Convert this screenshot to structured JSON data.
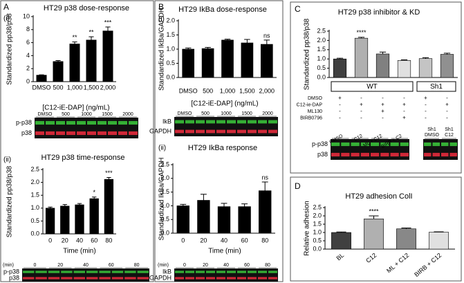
{
  "panels": [
    "A",
    "B",
    "C",
    "D"
  ],
  "subpanels": [
    "(i)",
    "(ii)",
    "(i)",
    "(ii)"
  ],
  "chart_data": [
    {
      "type": "bar",
      "title": "HT29 p38 dose-response",
      "y_label": "Standardized pp38/p38",
      "x_label": "[C12-iE-DAP] (ng/mL)",
      "categories": [
        "DMSO",
        "500",
        "1,000",
        "1,500",
        "2,000"
      ],
      "values": [
        1.0,
        3.1,
        5.8,
        6.4,
        7.8
      ],
      "errors": [
        0.05,
        0.15,
        0.3,
        0.5,
        0.6
      ],
      "bar_labels": [
        null,
        null,
        "**",
        "**",
        "***"
      ],
      "color": "#000000",
      "ylim": [
        0,
        10
      ],
      "yticks": [
        0,
        2,
        4,
        6,
        8,
        10
      ]
    },
    {
      "type": "bar",
      "title": "HT29 p38 time-response",
      "y_label": "Standardized pp38/p38",
      "x_label": "Time (min)",
      "categories": [
        "0",
        "20",
        "40",
        "60",
        "80"
      ],
      "values": [
        1.0,
        1.08,
        1.13,
        1.37,
        2.12
      ],
      "errors": [
        0.04,
        0.06,
        0.05,
        0.06,
        0.07
      ],
      "bar_labels": [
        null,
        null,
        null,
        "*",
        "***"
      ],
      "color": "#000000",
      "ylim": [
        0,
        2.5
      ],
      "yticks": [
        {
          "value": 0,
          "label": "0.0"
        },
        0.5,
        {
          "value": 1,
          "label": "1.0"
        },
        1.5,
        {
          "value": 2,
          "label": "2.0"
        },
        2.5
      ]
    },
    {
      "type": "bar",
      "title": "HT29 IkBa dose-response",
      "y_label": "Standardized IkBa/GAPDH",
      "x_label": "[C12-iE-DAP] (ng/mL)",
      "categories": [
        "DMSO",
        "500",
        "1,000",
        "1,500",
        "2,000"
      ],
      "values": [
        1.0,
        1.02,
        1.32,
        1.22,
        1.17
      ],
      "errors": [
        0.04,
        0.04,
        0.03,
        0.12,
        0.15
      ],
      "bar_labels": [
        null,
        null,
        null,
        null,
        "ns"
      ],
      "color": "#000000",
      "ylim": [
        0,
        2
      ],
      "yticks": [
        {
          "value": 0,
          "label": "0.0"
        },
        0.5,
        {
          "value": 1,
          "label": "1.0"
        },
        1.5,
        {
          "value": 2,
          "label": "2.0"
        }
      ]
    },
    {
      "type": "bar",
      "title": "HT29 IkBa response",
      "y_label": "Standardized IkBa/GAPDH",
      "x_label": "Time (min)",
      "categories": [
        "0",
        "20",
        "40",
        "60",
        "80"
      ],
      "values": [
        1.0,
        1.2,
        0.97,
        0.97,
        1.55
      ],
      "errors": [
        0.05,
        0.22,
        0.12,
        0.1,
        0.32
      ],
      "bar_labels": [
        null,
        null,
        null,
        null,
        "ns"
      ],
      "color": "#000000",
      "ylim": [
        0,
        2.5
      ],
      "yticks": [
        {
          "value": 0,
          "label": "0.0"
        },
        0.5,
        {
          "value": 1,
          "label": "1.0"
        },
        1.5,
        {
          "value": 2,
          "label": "2.0"
        },
        2.5
      ]
    },
    {
      "type": "bar",
      "title": "HT29 p38 inhibitor & KD",
      "y_label": "Standardized pp38/p38",
      "categories": [
        null,
        null,
        null,
        null,
        null,
        null
      ],
      "values": [
        1.0,
        2.12,
        1.27,
        0.92,
        1.02,
        1.25
      ],
      "errors": [
        0.04,
        0.05,
        0.1,
        0.03,
        0.05,
        0.06
      ],
      "bar_labels": [
        null,
        "****",
        null,
        null,
        null,
        null
      ],
      "colors": [
        "#404040",
        "#b0b0b0",
        "#808080",
        "#e0e0e0",
        "#c4c4c4",
        "#909090"
      ],
      "groups": [
        "WT",
        "Sh1"
      ],
      "treatments": [
        {
          "name": "DMSO",
          "marks": [
            "+",
            "-",
            "-",
            "-",
            "+",
            "-"
          ]
        },
        {
          "name": "C12-ie-DAP",
          "marks": [
            "-",
            "+",
            "+",
            "+",
            "-",
            "+"
          ]
        },
        {
          "name": "ML130",
          "marks": [
            "-",
            "-",
            "+",
            "-",
            "-",
            "-"
          ]
        },
        {
          "name": "BIRB0796",
          "marks": [
            "-",
            "-",
            "-",
            "+",
            "-",
            "-"
          ]
        }
      ],
      "ylim": [
        0,
        2.5
      ],
      "yticks": [
        {
          "value": 0,
          "label": "0.0"
        },
        0.5,
        {
          "value": 1,
          "label": "1.0"
        },
        1.5,
        {
          "value": 2,
          "label": "2.0"
        },
        2.5
      ]
    },
    {
      "type": "bar",
      "title": "HT29 adhesion ColI",
      "y_label": "Relative adhesion",
      "categories": [
        "BL",
        "C12",
        "ML + C12",
        "BIRB + C12"
      ],
      "values": [
        1.0,
        1.82,
        1.22,
        1.02
      ],
      "errors": [
        0.03,
        0.18,
        0.05,
        0.02
      ],
      "bar_labels": [
        null,
        "****",
        null,
        null
      ],
      "colors": [
        "#404040",
        "#b0b0b0",
        "#888888",
        "#e0e0e0"
      ],
      "ylim": [
        0,
        2.5
      ],
      "yticks": [
        {
          "value": 0,
          "label": "0.0"
        },
        0.5,
        {
          "value": 1,
          "label": "1.0"
        },
        1.5,
        {
          "value": 2,
          "label": "2.0"
        },
        2.5
      ]
    }
  ],
  "blots": [
    {
      "lanes": [
        "DMSO",
        "500",
        "1000",
        "1500",
        "2000"
      ],
      "rows": [
        "p-p38",
        "p38"
      ]
    },
    {
      "unit": "(min)",
      "lanes": [
        "0",
        "20",
        "40",
        "60",
        "80"
      ],
      "rows": [
        "p-p38",
        "p38"
      ]
    },
    {
      "lanes": [
        "DMSO",
        "500",
        "1000",
        "1500",
        "2000"
      ],
      "rows": [
        "IkB",
        "GAPDH"
      ]
    },
    {
      "unit": "(min)",
      "lanes": [
        "0",
        "20",
        "40",
        "60",
        "80"
      ],
      "rows": [
        "IkB",
        "GAPDH"
      ]
    },
    {
      "lanes": [
        "DMSO",
        "C12",
        "ML + C12",
        "BIRB + C2",
        [
          "Sh1",
          "DMSO"
        ],
        [
          "Sh1",
          "C12"
        ]
      ],
      "rows": [
        "p-p38",
        "p38"
      ]
    }
  ]
}
